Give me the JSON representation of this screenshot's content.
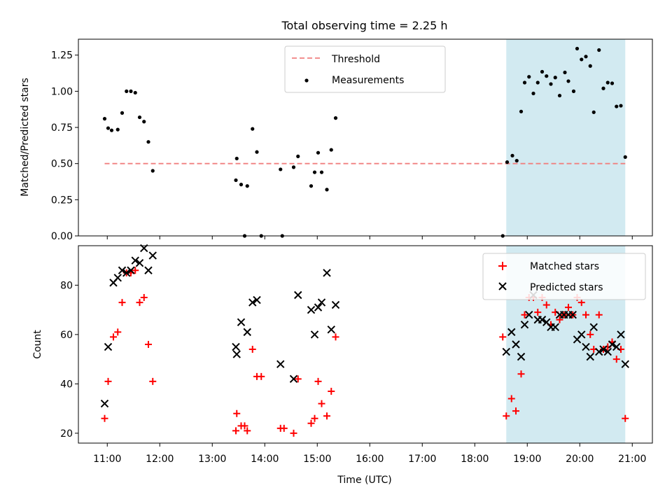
{
  "title": "Total observing time = 2.25 h",
  "colors": {
    "threshold": "#f08080",
    "highlight": "#add8e6",
    "measurement": "#000000",
    "matched": "#ff0000",
    "predicted": "#000000"
  },
  "chart_data": [
    {
      "type": "scatter",
      "title": "Total observing time = 2.25 h",
      "xlabel": "",
      "ylabel": "Matched/Predicted stars",
      "xlim": [
        "10:27",
        "21:23"
      ],
      "ylim": [
        0,
        1.36
      ],
      "yticks": [
        "0.00",
        "0.25",
        "0.50",
        "0.75",
        "1.00",
        "1.25"
      ],
      "legend_position": "upper center",
      "highlight_band": {
        "start": "18:36",
        "end": "20:52"
      },
      "threshold": {
        "name": "Threshold",
        "y": 0.5,
        "x_start": "10:57",
        "x_end": "20:52",
        "style": "dashed"
      },
      "series": [
        {
          "name": "Measurements",
          "points": [
            [
              "10:57",
              0.81
            ],
            [
              "11:01",
              0.745
            ],
            [
              "11:05",
              0.73
            ],
            [
              "11:12",
              0.735
            ],
            [
              "11:17",
              0.85
            ],
            [
              "11:22",
              1.0
            ],
            [
              "11:27",
              1.0
            ],
            [
              "11:32",
              0.99
            ],
            [
              "11:37",
              0.82
            ],
            [
              "11:42",
              0.79
            ],
            [
              "11:47",
              0.65
            ],
            [
              "11:52",
              0.45
            ],
            [
              "13:27",
              0.385
            ],
            [
              "13:28",
              0.535
            ],
            [
              "13:33",
              0.355
            ],
            [
              "13:37",
              0.0
            ],
            [
              "13:40",
              0.345
            ],
            [
              "13:46",
              0.74
            ],
            [
              "13:51",
              0.58
            ],
            [
              "13:56",
              0.0
            ],
            [
              "14:18",
              0.46
            ],
            [
              "14:20",
              0.0
            ],
            [
              "14:33",
              0.475
            ],
            [
              "14:38",
              0.55
            ],
            [
              "14:53",
              0.345
            ],
            [
              "14:57",
              0.44
            ],
            [
              "15:01",
              0.575
            ],
            [
              "15:05",
              0.44
            ],
            [
              "15:11",
              0.32
            ],
            [
              "15:16",
              0.595
            ],
            [
              "15:21",
              0.815
            ],
            [
              "18:32",
              0.0
            ],
            [
              "18:37",
              0.51
            ],
            [
              "18:43",
              0.555
            ],
            [
              "18:48",
              0.52
            ],
            [
              "18:53",
              0.86
            ],
            [
              "18:57",
              1.06
            ],
            [
              "19:02",
              1.1
            ],
            [
              "19:07",
              0.985
            ],
            [
              "19:12",
              1.06
            ],
            [
              "19:17",
              1.135
            ],
            [
              "19:22",
              1.105
            ],
            [
              "19:27",
              1.05
            ],
            [
              "19:32",
              1.095
            ],
            [
              "19:37",
              0.97
            ],
            [
              "19:43",
              1.13
            ],
            [
              "19:47",
              1.07
            ],
            [
              "19:53",
              1.0
            ],
            [
              "19:57",
              1.295
            ],
            [
              "20:02",
              1.22
            ],
            [
              "20:07",
              1.24
            ],
            [
              "20:12",
              1.175
            ],
            [
              "20:16",
              0.855
            ],
            [
              "20:22",
              1.285
            ],
            [
              "20:27",
              1.02
            ],
            [
              "20:32",
              1.06
            ],
            [
              "20:37",
              1.055
            ],
            [
              "20:42",
              0.895
            ],
            [
              "20:47",
              0.9
            ],
            [
              "20:52",
              0.545
            ]
          ]
        }
      ]
    },
    {
      "type": "scatter",
      "title": "",
      "xlabel": "Time (UTC)",
      "ylabel": "Count",
      "xlim": [
        "10:27",
        "21:23"
      ],
      "ylim": [
        16,
        96
      ],
      "xticks": [
        "11:00",
        "12:00",
        "13:00",
        "14:00",
        "15:00",
        "16:00",
        "17:00",
        "18:00",
        "19:00",
        "20:00",
        "21:00"
      ],
      "yticks": [
        "20",
        "40",
        "60",
        "80"
      ],
      "legend_position": "upper right",
      "highlight_band": {
        "start": "18:36",
        "end": "20:52"
      },
      "series": [
        {
          "name": "Matched stars",
          "marker": "plus",
          "points": [
            [
              "10:57",
              26
            ],
            [
              "11:01",
              41
            ],
            [
              "11:07",
              59
            ],
            [
              "11:12",
              61
            ],
            [
              "11:17",
              73
            ],
            [
              "11:22",
              85
            ],
            [
              "11:27",
              85
            ],
            [
              "11:32",
              86
            ],
            [
              "11:37",
              73
            ],
            [
              "11:42",
              75
            ],
            [
              "11:47",
              56
            ],
            [
              "11:52",
              41
            ],
            [
              "13:27",
              21
            ],
            [
              "13:28",
              28
            ],
            [
              "13:33",
              23
            ],
            [
              "13:37",
              23
            ],
            [
              "13:40",
              21
            ],
            [
              "13:46",
              54
            ],
            [
              "13:51",
              43
            ],
            [
              "13:56",
              43
            ],
            [
              "14:18",
              22
            ],
            [
              "14:22",
              22
            ],
            [
              "14:33",
              20
            ],
            [
              "14:38",
              42
            ],
            [
              "14:53",
              24
            ],
            [
              "14:57",
              26
            ],
            [
              "15:01",
              41
            ],
            [
              "15:05",
              32
            ],
            [
              "15:11",
              27
            ],
            [
              "15:16",
              37
            ],
            [
              "15:21",
              59
            ],
            [
              "18:32",
              59
            ],
            [
              "18:36",
              27
            ],
            [
              "18:42",
              34
            ],
            [
              "18:47",
              29
            ],
            [
              "18:53",
              44
            ],
            [
              "18:57",
              68
            ],
            [
              "19:02",
              75
            ],
            [
              "19:07",
              75
            ],
            [
              "19:12",
              69
            ],
            [
              "19:17",
              75
            ],
            [
              "19:22",
              72
            ],
            [
              "19:27",
              64
            ],
            [
              "19:32",
              69
            ],
            [
              "19:37",
              66
            ],
            [
              "19:42",
              68
            ],
            [
              "19:47",
              71
            ],
            [
              "19:52",
              68
            ],
            [
              "19:57",
              75
            ],
            [
              "20:02",
              73
            ],
            [
              "20:07",
              68
            ],
            [
              "20:12",
              60
            ],
            [
              "20:16",
              54
            ],
            [
              "20:22",
              68
            ],
            [
              "20:27",
              54
            ],
            [
              "20:32",
              55
            ],
            [
              "20:37",
              57
            ],
            [
              "20:42",
              50
            ],
            [
              "20:47",
              54
            ],
            [
              "20:52",
              26
            ]
          ]
        },
        {
          "name": "Predicted stars",
          "marker": "x",
          "points": [
            [
              "10:57",
              32
            ],
            [
              "11:01",
              55
            ],
            [
              "11:07",
              81
            ],
            [
              "11:12",
              83
            ],
            [
              "11:17",
              86
            ],
            [
              "11:22",
              85
            ],
            [
              "11:27",
              86
            ],
            [
              "11:32",
              90
            ],
            [
              "11:37",
              89
            ],
            [
              "11:42",
              95
            ],
            [
              "11:47",
              86
            ],
            [
              "11:52",
              92
            ],
            [
              "13:27",
              55
            ],
            [
              "13:28",
              52
            ],
            [
              "13:33",
              65
            ],
            [
              "13:40",
              61
            ],
            [
              "13:46",
              73
            ],
            [
              "13:51",
              74
            ],
            [
              "14:18",
              48
            ],
            [
              "14:33",
              42
            ],
            [
              "14:38",
              76
            ],
            [
              "14:53",
              70
            ],
            [
              "14:57",
              60
            ],
            [
              "15:01",
              71
            ],
            [
              "15:05",
              73
            ],
            [
              "15:11",
              85
            ],
            [
              "15:16",
              62
            ],
            [
              "15:21",
              72
            ],
            [
              "18:36",
              53
            ],
            [
              "18:42",
              61
            ],
            [
              "18:47",
              56
            ],
            [
              "18:53",
              51
            ],
            [
              "18:57",
              64
            ],
            [
              "19:02",
              68
            ],
            [
              "19:07",
              76
            ],
            [
              "19:12",
              66
            ],
            [
              "19:17",
              66
            ],
            [
              "19:22",
              65
            ],
            [
              "19:27",
              63
            ],
            [
              "19:32",
              63
            ],
            [
              "19:37",
              68
            ],
            [
              "19:42",
              68
            ],
            [
              "19:47",
              68
            ],
            [
              "19:52",
              68
            ],
            [
              "19:57",
              58
            ],
            [
              "20:02",
              60
            ],
            [
              "20:07",
              55
            ],
            [
              "20:12",
              51
            ],
            [
              "20:16",
              63
            ],
            [
              "20:22",
              53
            ],
            [
              "20:27",
              54
            ],
            [
              "20:32",
              53
            ],
            [
              "20:37",
              56
            ],
            [
              "20:42",
              55
            ],
            [
              "20:47",
              60
            ],
            [
              "20:52",
              48
            ]
          ]
        }
      ]
    }
  ]
}
